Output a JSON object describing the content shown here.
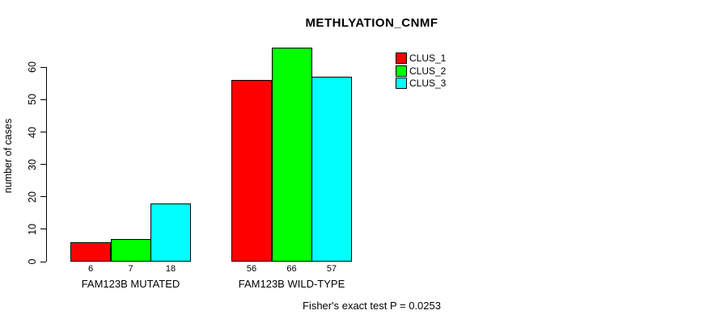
{
  "chart_data": {
    "type": "bar",
    "title": "METHLYATION_CNMF",
    "ylabel": "number of cases",
    "xlabel": "",
    "annotation": "Fisher's exact test P = 0.0253",
    "categories": [
      "FAM123B MUTATED",
      "FAM123B WILD-TYPE"
    ],
    "series": [
      {
        "name": "CLUS_1",
        "color": "#ff0000",
        "values": [
          6,
          56
        ]
      },
      {
        "name": "CLUS_2",
        "color": "#00ff00",
        "values": [
          7,
          66
        ]
      },
      {
        "name": "CLUS_3",
        "color": "#00ffff",
        "values": [
          18,
          57
        ]
      }
    ],
    "bar_value_labels": [
      [
        6,
        7,
        18
      ],
      [
        56,
        66,
        57
      ]
    ],
    "yticks": [
      0,
      10,
      20,
      30,
      40,
      50,
      60
    ],
    "ylim": [
      0,
      66
    ],
    "grid": false,
    "legend_position": "top-right",
    "background_color": "#ffffff",
    "axis_color": "#000000"
  }
}
